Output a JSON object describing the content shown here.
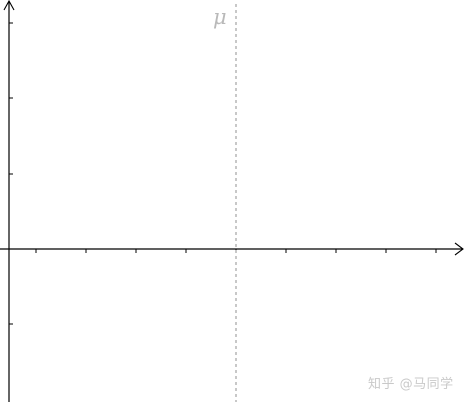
{
  "chart_data": {
    "type": "line",
    "title": "",
    "xlabel": "",
    "ylabel": "",
    "series": [],
    "grid": false,
    "annotations": [
      {
        "kind": "vertical-dashed-line",
        "label": "μ",
        "color": "#c8c8c8"
      }
    ],
    "axes": {
      "color": "#000000",
      "x_ticks_count": 9,
      "y_ticks_count": 4,
      "arrowheads": true
    }
  },
  "watermark": {
    "text": "知乎 @马同学"
  }
}
